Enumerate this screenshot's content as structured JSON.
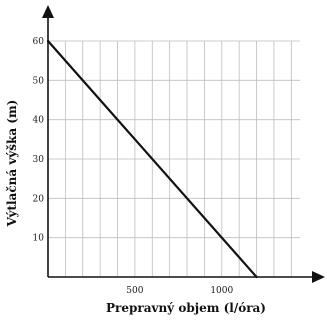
{
  "chart_data": {
    "type": "line",
    "title": "",
    "xlabel": "Prepravný objem (l/óra)",
    "ylabel": "Výtlačná výška (m)",
    "xlim": [
      0,
      1450
    ],
    "ylim": [
      0,
      60
    ],
    "x_ticks": [
      500,
      1000
    ],
    "y_ticks": [
      10,
      20,
      30,
      40,
      50,
      60
    ],
    "x_grid_step": 100,
    "y_grid_step": 10,
    "grid": true,
    "legend": "none",
    "series": [
      {
        "x": [
          0,
          1200
        ],
        "y": [
          60,
          0
        ],
        "color": "#111111"
      }
    ],
    "colors": {
      "grid": "#bdbdbd",
      "axis": "#111111",
      "text": "#1a1a1a"
    }
  }
}
